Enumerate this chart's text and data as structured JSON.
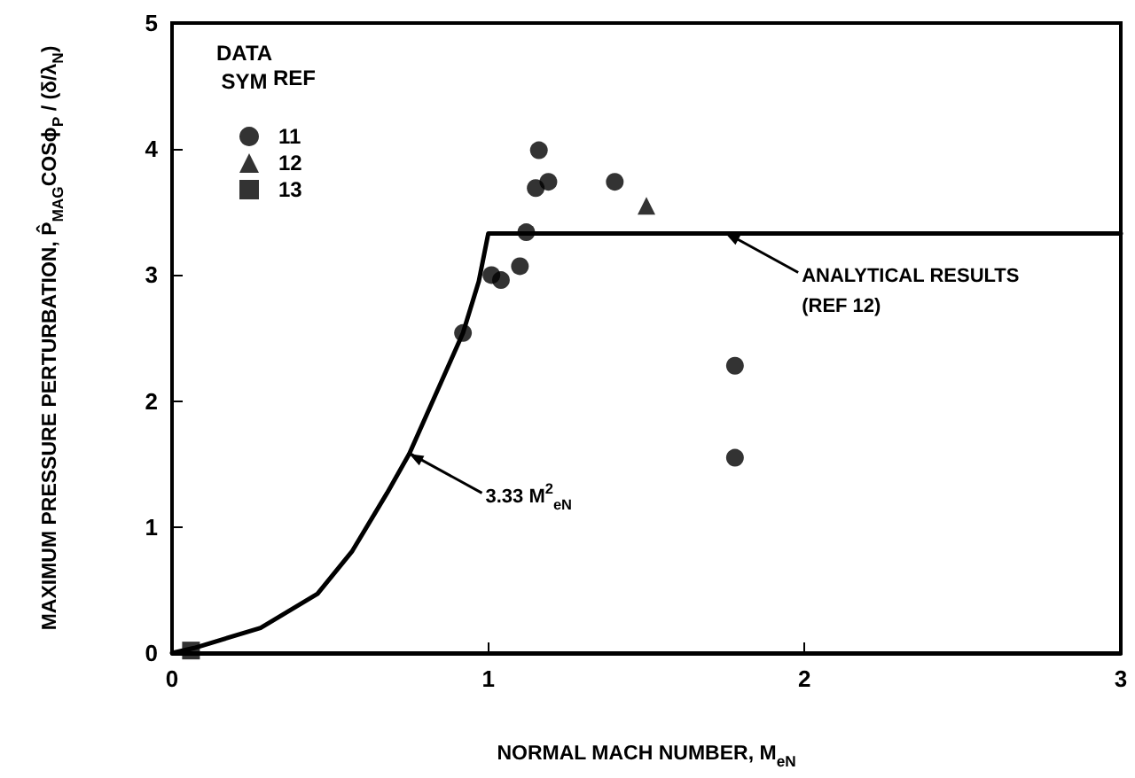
{
  "chart_data": {
    "type": "scatter",
    "xlabel": "NORMAL MACH NUMBER, M$_{eN}$",
    "ylabel": "MAXIMUM PRESSURE PERTURBATION, P̂$_{MAG}$COSϕ$_{P}$ / (δ/λ$_{N}$)",
    "legend_title": "DATA\nSYM",
    "xlim": [
      0,
      3
    ],
    "xticks": [
      0,
      1,
      2,
      3
    ],
    "ylim": [
      0,
      5
    ],
    "yticks": [
      0,
      1,
      2,
      3,
      4,
      5
    ],
    "grid": false,
    "legend": "top left",
    "series": [
      {
        "name": "11",
        "color": "#000000",
        "marker": "circle",
        "x": [
          0.92,
          1.01,
          1.04,
          1.1,
          1.12,
          1.16,
          1.15,
          1.19,
          1.4,
          1.78,
          1.78
        ],
        "values": [
          2.54,
          3.0,
          2.96,
          3.07,
          3.34,
          3.99,
          3.69,
          3.74,
          3.74,
          2.28,
          1.55
        ]
      },
      {
        "name": "12",
        "color": "#000000",
        "marker": "triangle",
        "x": [
          1.5
        ],
        "values": [
          3.55
        ]
      },
      {
        "name": "13",
        "color": "#000000",
        "marker": "square",
        "x": [
          0.06
        ],
        "values": [
          0.02
        ]
      },
      {
        "type": "line",
        "color": "#000000",
        "marker": "none",
        "line_style": "solid",
        "x": [
          0,
          0.07,
          0.28,
          0.46,
          0.57,
          0.68,
          0.75,
          0.92,
          0.97,
          1.0,
          3.0
        ],
        "values": [
          0,
          0.04,
          0.2,
          0.47,
          0.81,
          1.27,
          1.58,
          2.54,
          2.95,
          3.33,
          3.33
        ]
      }
    ],
    "annotations": [
      "REF",
      {
        "text": "3.33 M$^{2}$$_{eN}$",
        "x": 0.75,
        "y": 1.58
      },
      {
        "text": "ANALYTICAL RESULTS\n(REF 12)",
        "x": 1.75,
        "y": 3.33
      }
    ]
  }
}
